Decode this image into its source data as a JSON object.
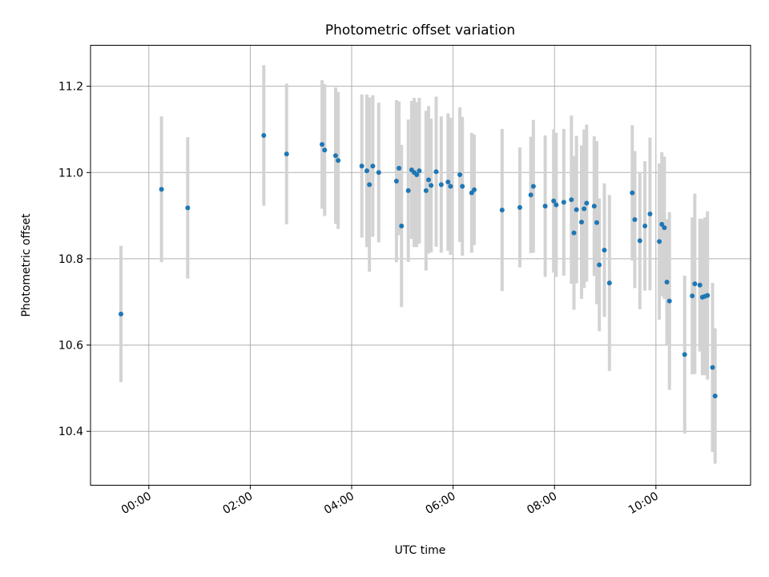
{
  "chart_data": {
    "type": "scatter",
    "title": "Photometric offset variation",
    "xlabel": "UTC time",
    "ylabel": "Photometric offset",
    "xlim": [
      "-1:09",
      "11:52"
    ],
    "ylim": [
      10.275,
      11.295
    ],
    "grid": true,
    "x_ticks": [
      "00:00",
      "02:00",
      "04:00",
      "06:00",
      "08:00",
      "10:00"
    ],
    "y_ticks": [
      "10.4",
      "10.6",
      "10.8",
      "11.0",
      "11.2"
    ],
    "point_color": "#1f77b4",
    "errorbar_color": "#d3d3d3",
    "series": [
      {
        "x": [
          "-0:33",
          "0:15",
          "0:46",
          "2:16",
          "2:43",
          "3:25",
          "3:28",
          "3:41",
          "3:44",
          "4:12",
          "4:18",
          "4:21",
          "4:25",
          "4:32",
          "4:53",
          "4:56",
          "4:59",
          "5:07",
          "5:11",
          "5:14",
          "5:17",
          "5:20",
          "5:28",
          "5:31",
          "5:34",
          "5:40",
          "5:46",
          "5:54",
          "5:57",
          "6:08",
          "6:11",
          "6:22",
          "6:25",
          "6:58",
          "7:19",
          "7:32",
          "7:35",
          "7:49",
          "7:59",
          "8:02",
          "8:11",
          "8:20",
          "8:23",
          "8:26",
          "8:32",
          "8:35",
          "8:38",
          "8:47",
          "8:50",
          "8:53",
          "8:59",
          "9:05",
          "9:32",
          "9:35",
          "9:41",
          "9:47",
          "9:53",
          "10:04",
          "10:07",
          "10:10",
          "10:13",
          "10:16",
          "10:34",
          "10:43",
          "10:46",
          "10:52",
          "10:55",
          "10:58",
          "11:01",
          "11:07",
          "11:10"
        ],
        "y": [
          10.672,
          10.961,
          10.918,
          11.086,
          11.043,
          11.065,
          11.052,
          11.039,
          11.028,
          11.015,
          11.004,
          10.972,
          11.015,
          11.0,
          10.98,
          11.01,
          10.876,
          10.958,
          11.006,
          11.0,
          10.995,
          11.004,
          10.958,
          10.983,
          10.97,
          11.002,
          10.972,
          10.978,
          10.968,
          10.995,
          10.968,
          10.953,
          10.96,
          10.913,
          10.919,
          10.948,
          10.968,
          10.922,
          10.934,
          10.925,
          10.931,
          10.937,
          10.86,
          10.914,
          10.885,
          10.916,
          10.929,
          10.922,
          10.884,
          10.786,
          10.82,
          10.744,
          10.953,
          10.891,
          10.842,
          10.876,
          10.904,
          10.84,
          10.88,
          10.872,
          10.746,
          10.702,
          10.578,
          10.714,
          10.742,
          10.739,
          10.711,
          10.713,
          10.715,
          10.548,
          10.482
        ],
        "err": [
          0.158,
          0.169,
          0.164,
          0.163,
          0.163,
          0.149,
          0.153,
          0.158,
          0.159,
          0.166,
          0.177,
          0.202,
          0.164,
          0.162,
          0.188,
          0.155,
          0.188,
          0.165,
          0.16,
          0.173,
          0.168,
          0.169,
          0.185,
          0.171,
          0.155,
          0.174,
          0.158,
          0.159,
          0.159,
          0.156,
          0.161,
          0.139,
          0.128,
          0.188,
          0.139,
          0.135,
          0.154,
          0.164,
          0.166,
          0.167,
          0.17,
          0.195,
          0.178,
          0.171,
          0.178,
          0.184,
          0.182,
          0.162,
          0.189,
          0.154,
          0.155,
          0.204,
          0.157,
          0.159,
          0.159,
          0.15,
          0.177,
          0.181,
          0.167,
          0.165,
          0.146,
          0.206,
          0.183,
          0.182,
          0.209,
          0.154,
          0.181,
          0.183,
          0.195,
          0.196,
          0.157
        ]
      }
    ]
  }
}
